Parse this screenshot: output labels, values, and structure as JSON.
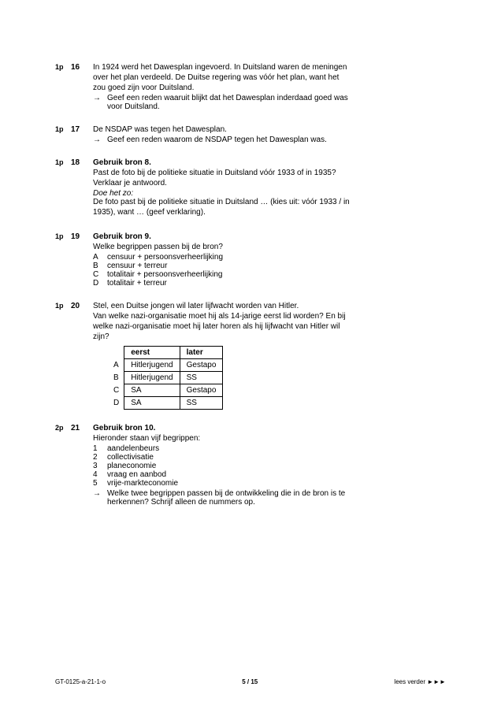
{
  "questions": [
    {
      "points": "1p",
      "num": "16",
      "lines": [
        "In 1924 werd het Dawesplan ingevoerd. In Duitsland waren de meningen",
        "over het plan verdeeld. De Duitse regering was vóór het plan, want het",
        "zou goed zijn voor Duitsland."
      ],
      "sub": [
        "Geef een reden waaruit blijkt dat het Dawesplan inderdaad goed was",
        "voor Duitsland."
      ]
    },
    {
      "points": "1p",
      "num": "17",
      "lines": [
        "De NSDAP was tegen het Dawesplan."
      ],
      "sub": [
        "Geef een reden waarom de NSDAP tegen het Dawesplan was."
      ]
    },
    {
      "points": "1p",
      "num": "18",
      "source": "Gebruik bron 8.",
      "lines": [
        "Past de foto bij de politieke situatie in Duitsland vóór 1933 of in 1935?",
        "Verklaar je antwoord."
      ],
      "italic": "Doe het zo:",
      "lines2": [
        "De foto past bij de politieke situatie in Duitsland … (kies uit: vóór 1933 / in",
        "1935), want … (geef verklaring)."
      ]
    },
    {
      "points": "1p",
      "num": "19",
      "source": "Gebruik bron 9.",
      "lines": [
        "Welke begrippen passen bij de bron?"
      ],
      "options": [
        {
          "l": "A",
          "t": "censuur + persoonsverheerlijking"
        },
        {
          "l": "B",
          "t": "censuur + terreur"
        },
        {
          "l": "C",
          "t": "totalitair + persoonsverheerlijking"
        },
        {
          "l": "D",
          "t": "totalitair + terreur"
        }
      ]
    },
    {
      "points": "1p",
      "num": "20",
      "lines": [
        "Stel, een Duitse jongen wil later lijfwacht worden van Hitler.",
        "Van welke nazi-organisatie moet hij als 14-jarige eerst lid worden? En bij",
        "welke nazi-organisatie moet hij later horen als hij lijfwacht van Hitler wil",
        "zijn?"
      ],
      "table": {
        "headers": [
          "eerst",
          "later"
        ],
        "rows": [
          {
            "l": "A",
            "c": [
              "Hitlerjugend",
              "Gestapo"
            ]
          },
          {
            "l": "B",
            "c": [
              "Hitlerjugend",
              "SS"
            ]
          },
          {
            "l": "C",
            "c": [
              "SA",
              "Gestapo"
            ]
          },
          {
            "l": "D",
            "c": [
              "SA",
              "SS"
            ]
          }
        ]
      }
    },
    {
      "points": "2p",
      "num": "21",
      "source": "Gebruik bron 10.",
      "lines": [
        "Hieronder staan vijf begrippen:"
      ],
      "numbered": [
        {
          "n": "1",
          "t": "aandelenbeurs"
        },
        {
          "n": "2",
          "t": "collectivisatie"
        },
        {
          "n": "3",
          "t": "planeconomie"
        },
        {
          "n": "4",
          "t": "vraag en aanbod"
        },
        {
          "n": "5",
          "t": "vrije-markteconomie"
        }
      ],
      "sub": [
        "Welke twee begrippen passen bij de ontwikkeling die in de bron is te",
        "herkennen? Schrijf alleen de nummers op."
      ]
    }
  ],
  "footer": {
    "left": "GT-0125-a-21-1-o",
    "center": "5 / 15",
    "right": "lees verder ►►►"
  }
}
